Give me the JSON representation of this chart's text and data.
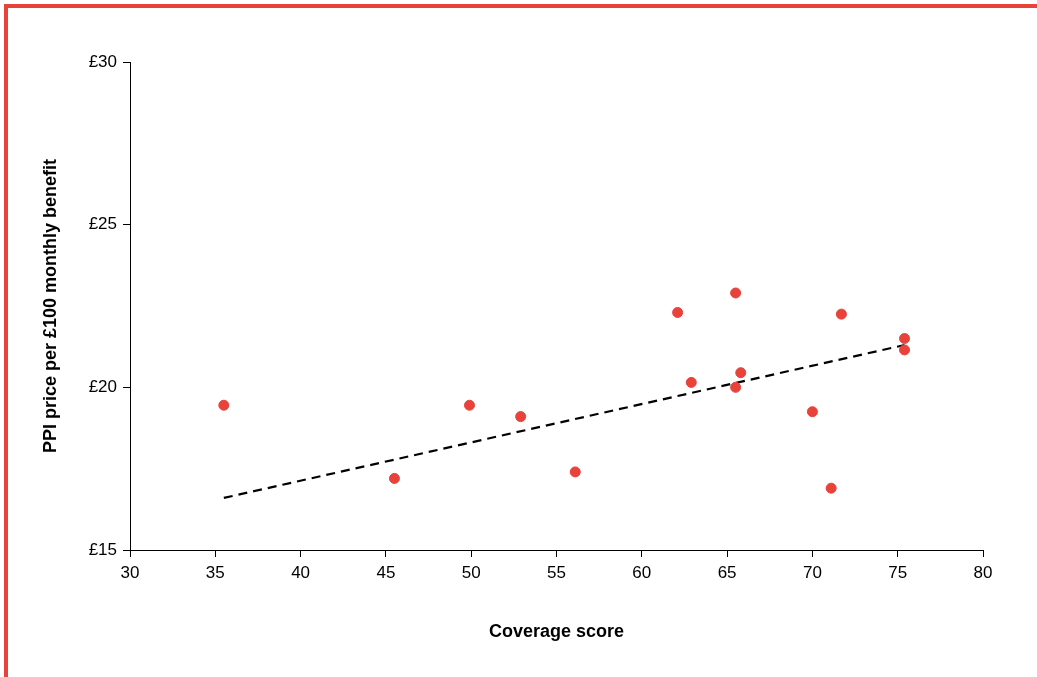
{
  "chart_data": {
    "type": "scatter",
    "xlabel": "Coverage score",
    "ylabel": "PPI price per £100 monthly benefit",
    "xlim": [
      30,
      80
    ],
    "xticks": [
      30,
      35,
      40,
      45,
      50,
      55,
      60,
      65,
      70,
      75,
      80
    ],
    "ylim": [
      15,
      30
    ],
    "yticks": [
      {
        "value": 15,
        "label": "£15"
      },
      {
        "value": 20,
        "label": "£20"
      },
      {
        "value": 25,
        "label": "£25"
      },
      {
        "value": 30,
        "label": "£30"
      }
    ],
    "grid": false,
    "legend": false,
    "marker": "circle",
    "series": [
      {
        "type": "scatter",
        "color": "#e8423b",
        "x": [
          35.5,
          45.5,
          49.9,
          52.9,
          56.1,
          62.1,
          62.9,
          65.5,
          65.5,
          65.8,
          70.0,
          71.1,
          71.7,
          75.4,
          75.4
        ],
        "values": [
          19.45,
          17.2,
          19.45,
          19.1,
          17.4,
          22.3,
          20.15,
          22.9,
          20.0,
          20.45,
          19.25,
          16.9,
          22.25,
          21.5,
          21.15
        ]
      },
      {
        "type": "line",
        "color": "#000000",
        "line_style": "dashed",
        "marker": "none",
        "x": [
          35.5,
          75.4
        ],
        "values": [
          16.6,
          21.3
        ]
      }
    ]
  }
}
